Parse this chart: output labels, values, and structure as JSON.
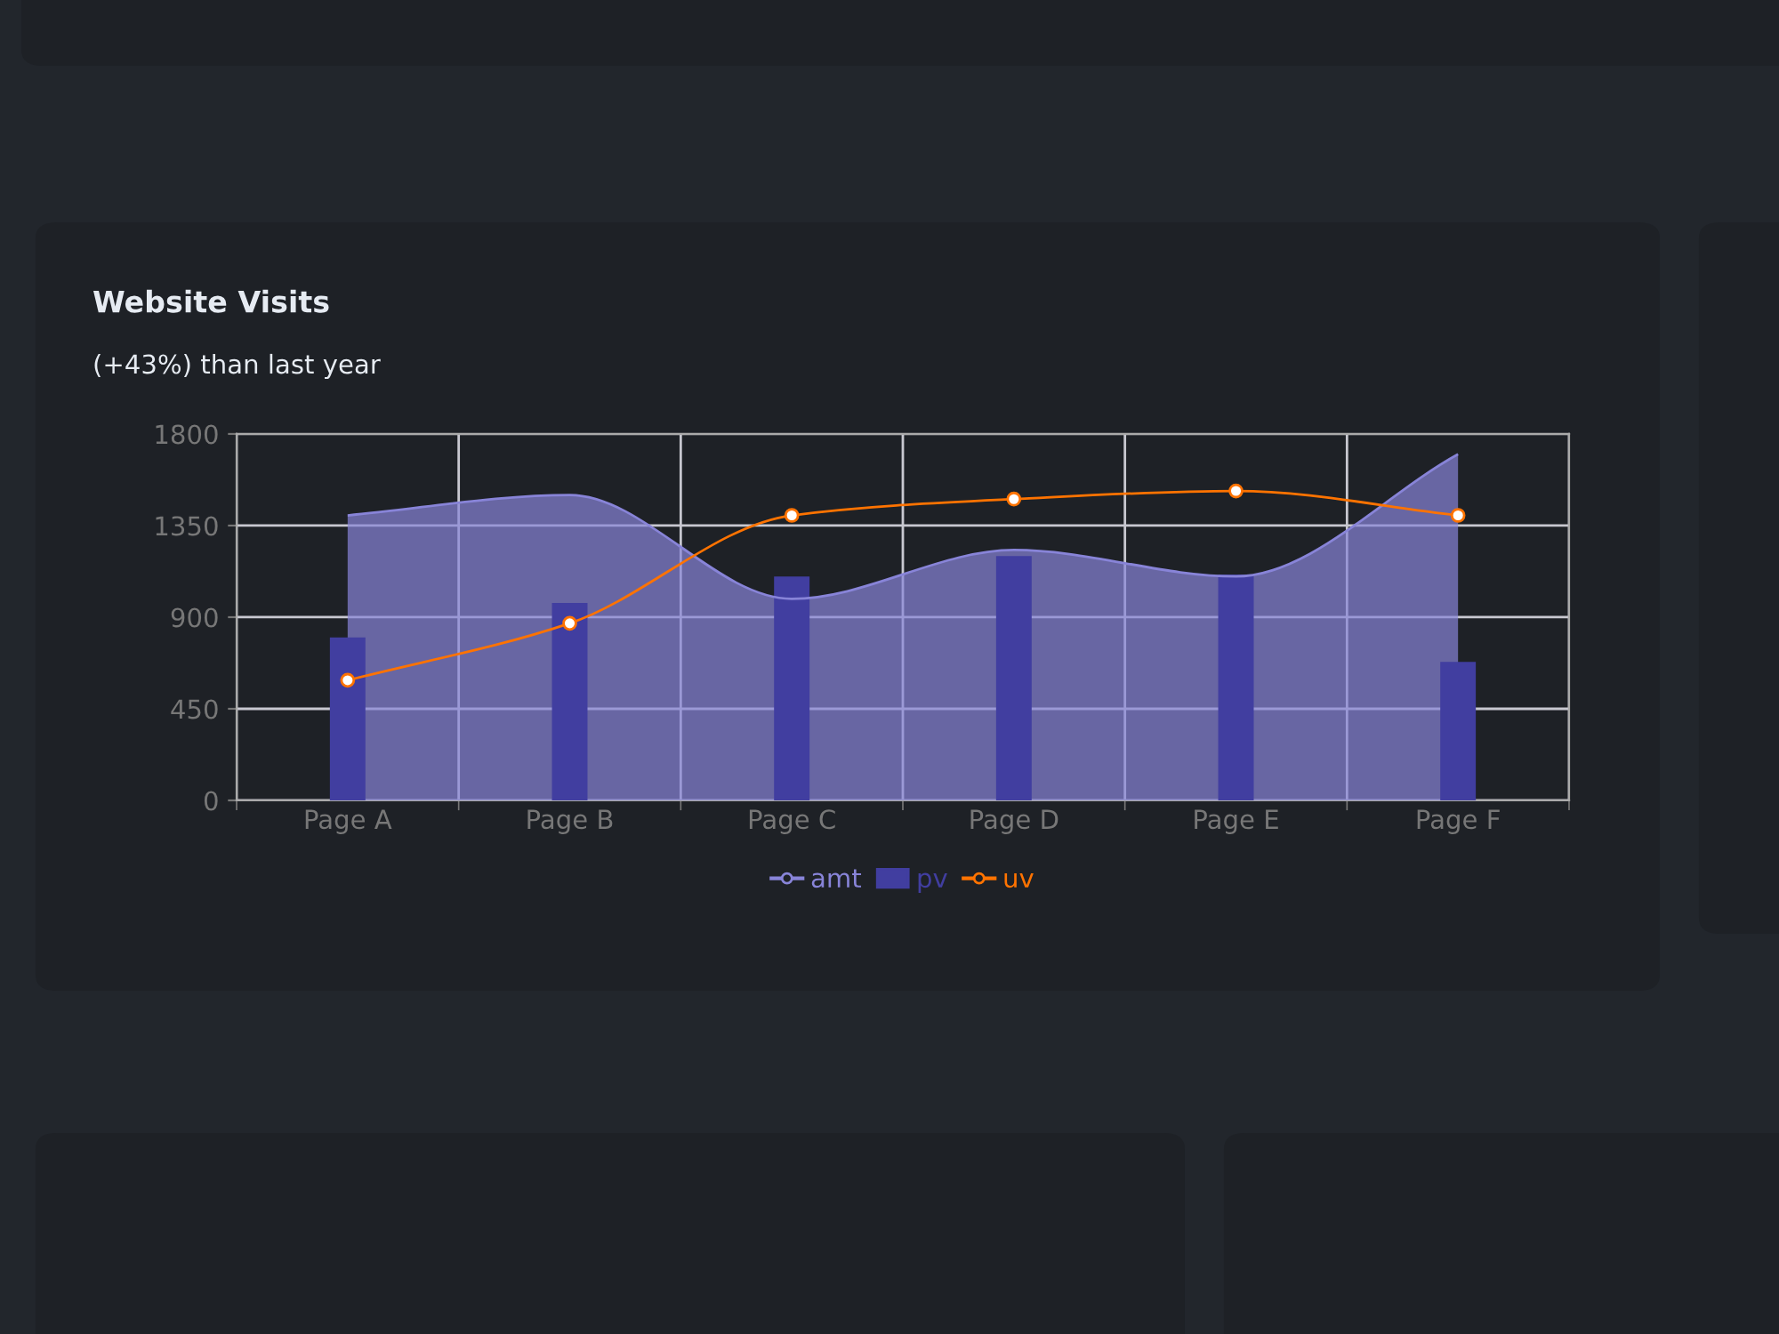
{
  "chart_data": {
    "type": "bar",
    "title": "Website Visits",
    "subtitle": "(+43%) than last year",
    "categories": [
      "Page A",
      "Page B",
      "Page C",
      "Page D",
      "Page E",
      "Page F"
    ],
    "series": [
      {
        "name": "amt",
        "type": "area",
        "color": "#8884d8",
        "values": [
          1400,
          1500,
          990,
          1230,
          1100,
          1700
        ]
      },
      {
        "name": "pv",
        "type": "bar",
        "color": "#413ea0",
        "values": [
          800,
          970,
          1100,
          1200,
          1110,
          680
        ]
      },
      {
        "name": "uv",
        "type": "line",
        "color": "#ff7300",
        "marker": "circle",
        "values": [
          590,
          870,
          1400,
          1480,
          1520,
          1400
        ]
      }
    ],
    "ylim": [
      0,
      1800
    ],
    "yticks": [
      0,
      450,
      900,
      1350,
      1800
    ],
    "grid": true,
    "legend": "bottom"
  }
}
